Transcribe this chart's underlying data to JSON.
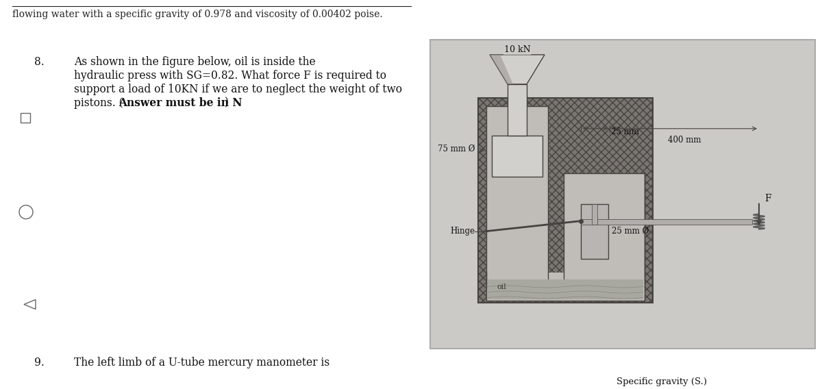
{
  "bg_color": "#ffffff",
  "top_text": "flowing water with a specific gravity of 0.978 and viscosity of 0.00402 poise.",
  "q8_number": "8.",
  "q8_indent": "        ",
  "q8_line1": "As shown in the figure below, oil is inside the",
  "q8_line2": "hydraulic press with SG=0.82. What force F is required to",
  "q8_line3": "support a load of 10KN if we are to neglect the weight of two",
  "q8_line4_pre": "pistons. (",
  "q8_bold": "Answer must be in N",
  "q8_line4_post": ")",
  "q9_number": "9.",
  "q9_text": "The left limb of a U-tube mercury manometer is",
  "q9_right_text": "Specific gravity (S.)",
  "label_10kN": "10 kN",
  "label_75mm": "75 mm Ø",
  "label_25mm_top": "25 mm",
  "label_400mm": "400 mm",
  "label_F": "F",
  "label_hinge": "Hinge",
  "label_25mm_bot": "25 mm Ø",
  "label_oil": "oil",
  "fig_bg": "#cccac6",
  "hatch_color": "#888480",
  "wall_color": "#8a8580",
  "inner_color": "#b0aeaa",
  "piston_light": "#d0cecc",
  "piston_dark": "#a8a5a2",
  "lever_color": "#b0adaa",
  "spring_color": "#606060"
}
